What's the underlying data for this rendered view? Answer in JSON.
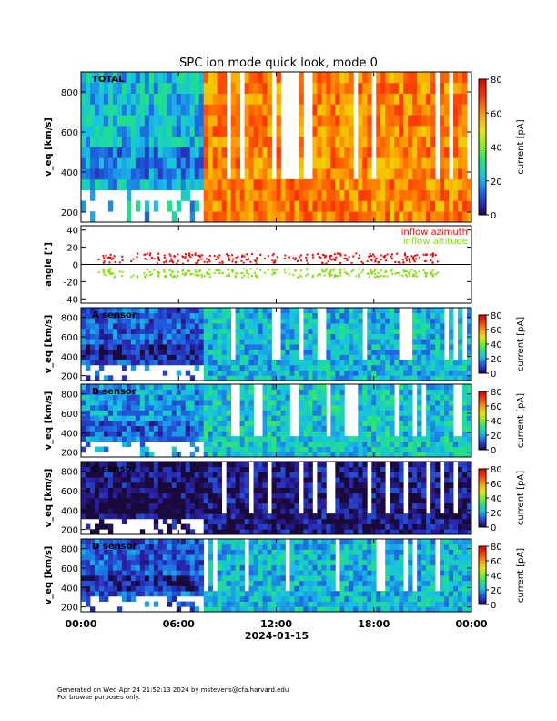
{
  "figure": {
    "title": "SPC ion mode quick look, mode 0",
    "footer_line1": "Generated on Wed Apr 24 21:52:13 2024 by mstevens@cfa.harvard.edu",
    "footer_line2": "For browse purposes only."
  },
  "chart_data": [
    {
      "type": "heatmap",
      "panel_label": "TOTAL",
      "ylabel": "v_eq [km/s]",
      "ylim": [
        150,
        900
      ],
      "yticks": [
        200,
        400,
        600,
        800
      ],
      "colorbar": {
        "label": "current [pA]",
        "range": [
          0,
          80
        ],
        "ticks": [
          0,
          20,
          40,
          60,
          80
        ]
      },
      "dominant_level_pA": {
        "before_07h30": 22,
        "after_07h30": 62
      }
    },
    {
      "type": "scatter",
      "ylabel": "angle [°]",
      "ylim": [
        -45,
        45
      ],
      "yticks": [
        -40,
        -20,
        0,
        20,
        40
      ],
      "series": [
        {
          "name": "inflow azimuth",
          "color": "#ff0000"
        },
        {
          "name": "inflow altitude",
          "color": "#7fe000"
        }
      ]
    },
    {
      "type": "heatmap",
      "panel_label": "A sensor",
      "ylabel": "v_eq [km/s]",
      "ylim": [
        150,
        900
      ],
      "yticks": [
        200,
        400,
        600,
        800
      ],
      "colorbar": {
        "label": "current [pA]",
        "range": [
          0,
          80
        ],
        "ticks": [
          0,
          20,
          40,
          60,
          80
        ]
      },
      "dominant_level_pA": {
        "before_07h30": 12,
        "after_07h30": 22
      }
    },
    {
      "type": "heatmap",
      "panel_label": "B sensor",
      "ylabel": "v_eq [km/s]",
      "ylim": [
        150,
        900
      ],
      "yticks": [
        200,
        400,
        600,
        800
      ],
      "colorbar": {
        "label": "current [pA]",
        "range": [
          0,
          80
        ],
        "ticks": [
          0,
          20,
          40,
          60,
          80
        ]
      },
      "dominant_level_pA": {
        "before_07h30": 18,
        "after_07h30": 24
      }
    },
    {
      "type": "heatmap",
      "panel_label": "C sensor",
      "ylabel": "v_eq [km/s]",
      "ylim": [
        150,
        900
      ],
      "yticks": [
        200,
        400,
        600,
        800
      ],
      "colorbar": {
        "label": "current [pA]",
        "range": [
          0,
          80
        ],
        "ticks": [
          0,
          20,
          40,
          60,
          80
        ]
      },
      "dominant_level_pA": {
        "before_07h30": 2,
        "after_07h30": 3
      }
    },
    {
      "type": "heatmap",
      "panel_label": "D sensor",
      "ylabel": "v_eq [km/s]",
      "ylim": [
        150,
        900
      ],
      "yticks": [
        200,
        400,
        600,
        800
      ],
      "colorbar": {
        "label": "current [pA]",
        "range": [
          0,
          80
        ],
        "ticks": [
          0,
          20,
          40,
          60,
          80
        ]
      },
      "dominant_level_pA": {
        "before_07h30": 12,
        "after_07h30": 22
      }
    }
  ],
  "x_axis": {
    "tick_labels": [
      "00:00",
      "06:00",
      "12:00",
      "18:00",
      "00:00"
    ],
    "tick_hours": [
      0,
      6,
      12,
      18,
      24
    ],
    "date_label": "2024-01-15"
  }
}
